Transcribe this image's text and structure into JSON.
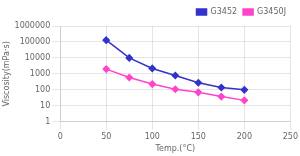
{
  "chart_data": {
    "type": "line",
    "xlabel": "Temp.(°C)",
    "ylabel": "Viscosity(mPa·s)",
    "x": [
      50,
      75,
      100,
      125,
      150,
      175,
      200
    ],
    "series": [
      {
        "name": "G3452",
        "color": "#3333cc",
        "marker": "diamond",
        "values": [
          130000,
          10000,
          2200,
          800,
          280,
          140,
          100
        ]
      },
      {
        "name": "G3450J",
        "color": "#ff44cc",
        "marker": "diamond",
        "values": [
          2000,
          600,
          230,
          110,
          70,
          38,
          22
        ]
      }
    ],
    "xlim": [
      0,
      250
    ],
    "xticks": [
      0,
      50,
      100,
      150,
      200,
      250
    ],
    "ylim": [
      1,
      1000000
    ],
    "yticks": [
      1,
      10,
      100,
      1000,
      10000,
      100000,
      1000000
    ],
    "log": "y",
    "grid": true,
    "legend": "upper right"
  }
}
